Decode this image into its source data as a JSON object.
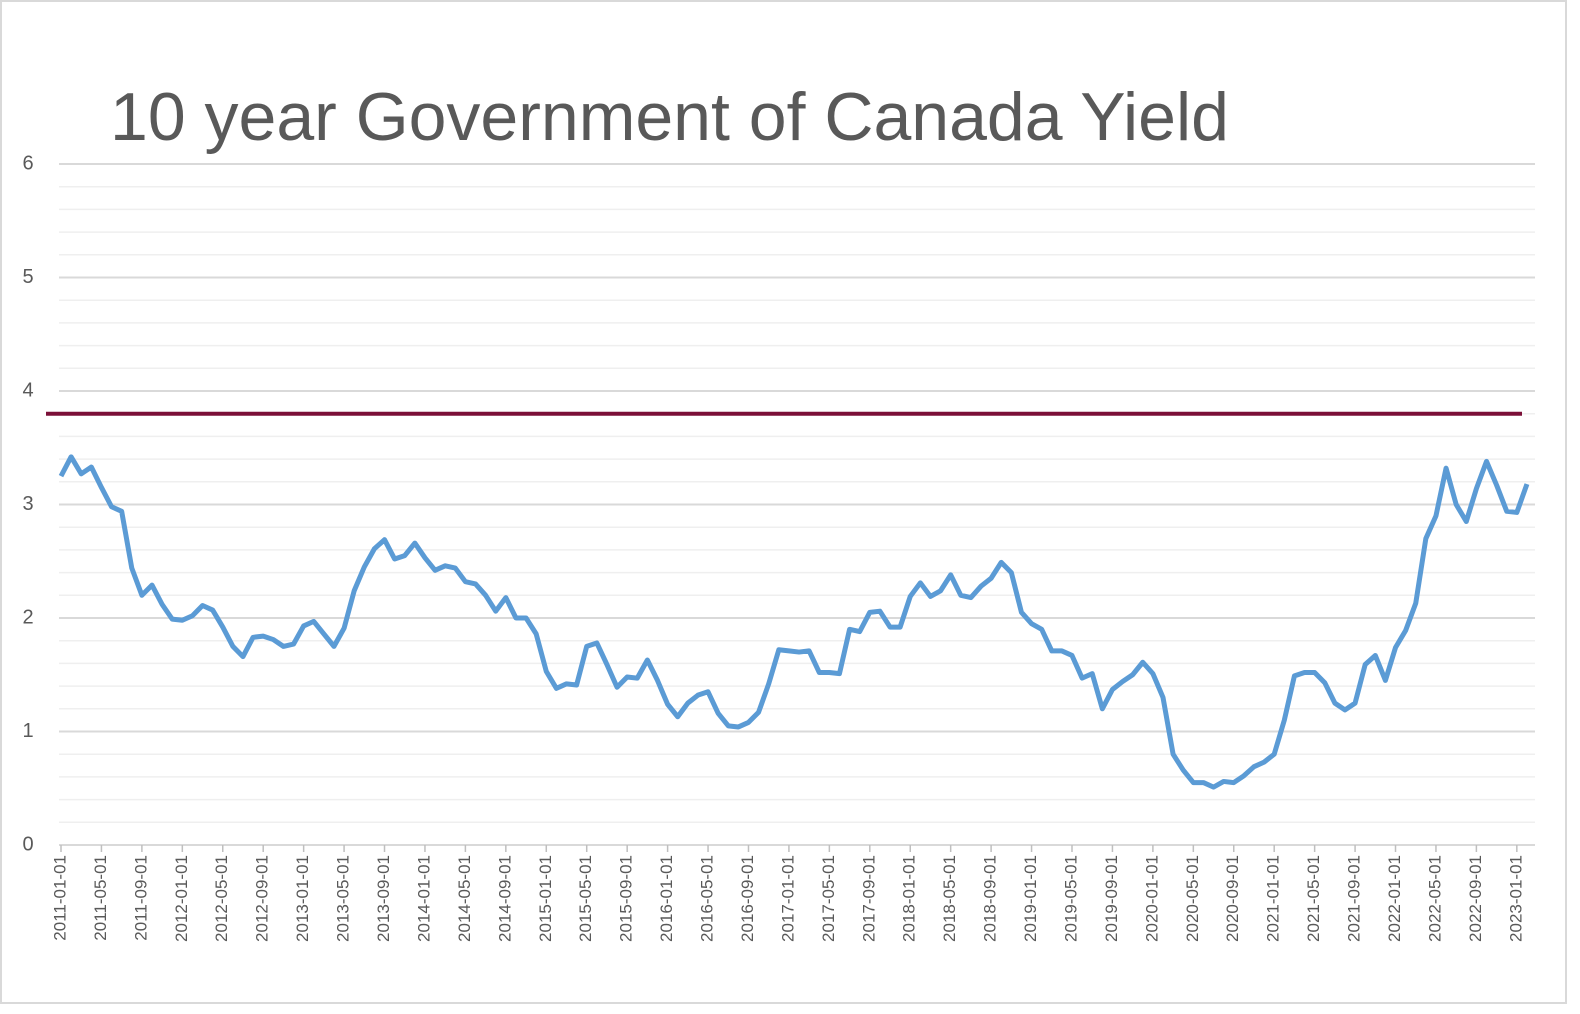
{
  "chart_data": {
    "type": "line",
    "title": "10 year Government of Canada Yield",
    "categories": [
      "2011-01-01",
      null,
      null,
      null,
      "2011-05-01",
      null,
      null,
      null,
      "2011-09-01",
      null,
      null,
      null,
      "2012-01-01",
      null,
      null,
      null,
      "2012-05-01",
      null,
      null,
      null,
      "2012-09-01",
      null,
      null,
      null,
      "2013-01-01",
      null,
      null,
      null,
      "2013-05-01",
      null,
      null,
      null,
      "2013-09-01",
      null,
      null,
      null,
      "2014-01-01",
      null,
      null,
      null,
      "2014-05-01",
      null,
      null,
      null,
      "2014-09-01",
      null,
      null,
      null,
      "2015-01-01",
      null,
      null,
      null,
      "2015-05-01",
      null,
      null,
      null,
      "2015-09-01",
      null,
      null,
      null,
      "2016-01-01",
      null,
      null,
      null,
      "2016-05-01",
      null,
      null,
      null,
      "2016-09-01",
      null,
      null,
      null,
      "2017-01-01",
      null,
      null,
      null,
      "2017-05-01",
      null,
      null,
      null,
      "2017-09-01",
      null,
      null,
      null,
      "2018-01-01",
      null,
      null,
      null,
      "2018-05-01",
      null,
      null,
      null,
      "2018-09-01",
      null,
      null,
      null,
      "2019-01-01",
      null,
      null,
      null,
      "2019-05-01",
      null,
      null,
      null,
      "2019-09-01",
      null,
      null,
      null,
      "2020-01-01",
      null,
      null,
      null,
      "2020-05-01",
      null,
      null,
      null,
      "2020-09-01",
      null,
      null,
      null,
      "2021-01-01",
      null,
      null,
      null,
      "2021-05-01",
      null,
      null,
      null,
      "2021-09-01",
      null,
      null,
      null,
      "2022-01-01",
      null,
      null,
      null,
      "2022-05-01",
      null,
      null,
      null,
      "2022-09-01",
      null,
      null,
      null,
      "2023-01-01",
      null
    ],
    "series": [
      {
        "color": "#5b9bd5",
        "values": [
          3.25,
          3.42,
          3.27,
          3.33,
          3.15,
          2.98,
          2.94,
          2.44,
          2.2,
          2.29,
          2.12,
          1.99,
          1.98,
          2.02,
          2.11,
          2.07,
          1.92,
          1.75,
          1.66,
          1.83,
          1.84,
          1.81,
          1.75,
          1.77,
          1.93,
          1.97,
          1.86,
          1.75,
          1.91,
          2.24,
          2.45,
          2.61,
          2.69,
          2.52,
          2.55,
          2.66,
          2.53,
          2.42,
          2.46,
          2.44,
          2.32,
          2.3,
          2.2,
          2.06,
          2.18,
          2.0,
          2.0,
          1.86,
          1.53,
          1.38,
          1.42,
          1.41,
          1.75,
          1.78,
          1.59,
          1.39,
          1.48,
          1.47,
          1.63,
          1.45,
          1.24,
          1.13,
          1.25,
          1.32,
          1.35,
          1.16,
          1.05,
          1.04,
          1.08,
          1.17,
          1.42,
          1.72,
          1.71,
          1.7,
          1.71,
          1.52,
          1.52,
          1.51,
          1.9,
          1.88,
          2.05,
          2.06,
          1.92,
          1.92,
          2.19,
          2.31,
          2.19,
          2.24,
          2.38,
          2.2,
          2.18,
          2.28,
          2.35,
          2.49,
          2.4,
          2.05,
          1.95,
          1.9,
          1.71,
          1.71,
          1.67,
          1.47,
          1.51,
          1.2,
          1.37,
          1.44,
          1.5,
          1.61,
          1.51,
          1.3,
          0.8,
          0.66,
          0.55,
          0.55,
          0.51,
          0.56,
          0.55,
          0.61,
          0.69,
          0.73,
          0.8,
          1.1,
          1.49,
          1.52,
          1.52,
          1.43,
          1.25,
          1.19,
          1.25,
          1.59,
          1.67,
          1.45,
          1.74,
          1.89,
          2.13,
          2.7,
          2.9,
          3.32,
          3.0,
          2.85,
          3.14,
          3.38,
          3.17,
          2.94,
          2.93,
          3.18
        ]
      }
    ],
    "reference_line": {
      "value": 3.8,
      "color": "#7b1038"
    },
    "ylim": [
      0,
      6
    ],
    "yticks": [
      0,
      1,
      2,
      3,
      4,
      5,
      6
    ],
    "minor_yticks": [
      0.2,
      0.4,
      0.6,
      0.8,
      1.2,
      1.4,
      1.6,
      1.8,
      2.2,
      2.4,
      2.6,
      2.8,
      3.2,
      3.4,
      3.6,
      3.8,
      4.2,
      4.4,
      4.6,
      4.8,
      5.2,
      5.4,
      5.6,
      5.8
    ],
    "grid": true
  }
}
